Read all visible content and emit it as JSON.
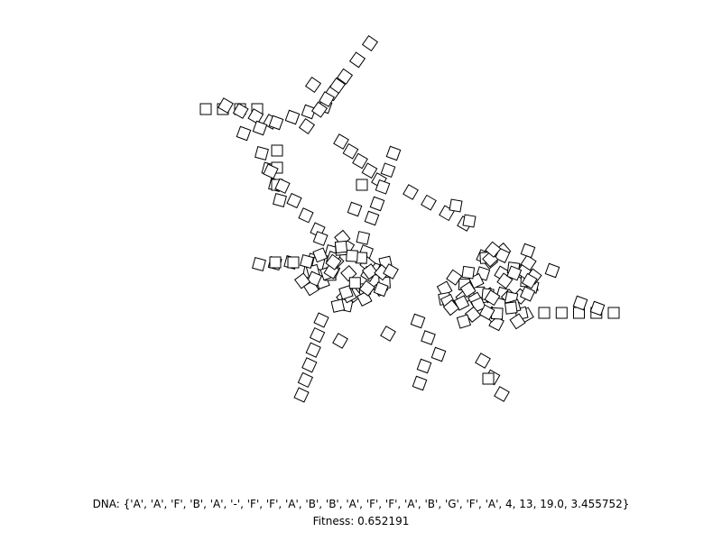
{
  "dna": {
    "label": "DNA:",
    "value": "{'A', 'A', 'F', 'B', 'A', '-', 'F', 'F', 'A', 'B', 'B', 'A', 'F', 'F', 'A', 'B', 'G', 'F', 'A', 4, 13, 19.0, 3.455752}"
  },
  "fitness": {
    "label": "Fitness:",
    "value": "0.652191"
  },
  "colors": {
    "stroke": "#000000",
    "fill": "#ffffff",
    "background": "#ffffff"
  }
}
